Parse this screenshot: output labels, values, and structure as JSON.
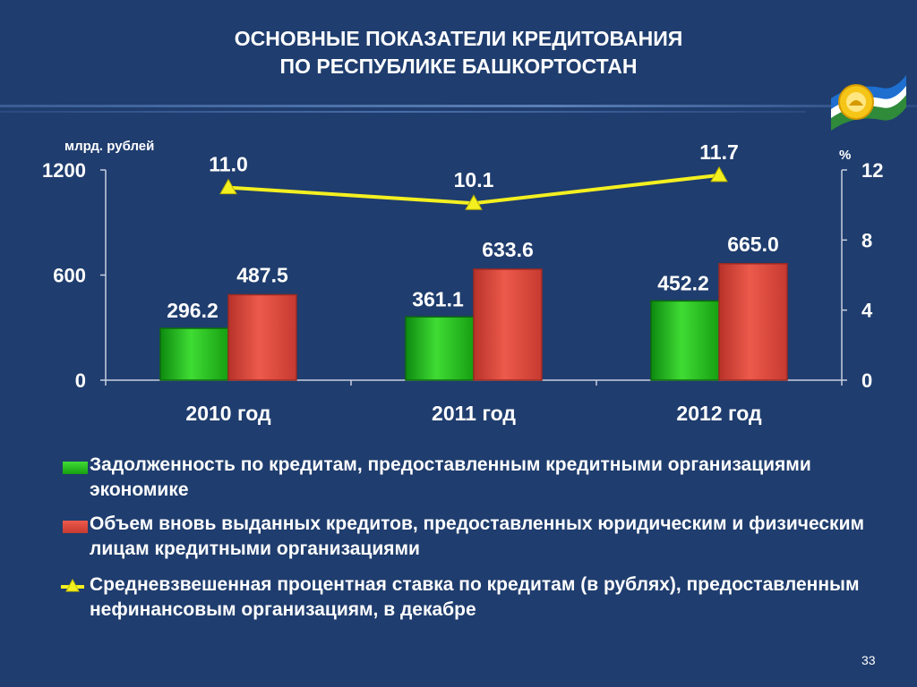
{
  "slide": {
    "title_line1": "ОСНОВНЫЕ ПОКАЗАТЕЛИ КРЕДИТОВАНИЯ",
    "title_line2": "ПО РЕСПУБЛИКЕ БАШКОРТОСТАН",
    "page_number": "33",
    "logo_icon": "bashkortostan-flag-emblem-icon"
  },
  "chart_data": {
    "type": "bar",
    "categories": [
      "2010 год",
      "2011 год",
      "2012 год"
    ],
    "y_left": {
      "unit_label": "млрд. рублей",
      "ticks": [
        0,
        600,
        1200
      ],
      "range": [
        0,
        1200
      ]
    },
    "y_right": {
      "unit_label": "%",
      "ticks": [
        0,
        4,
        8,
        12
      ],
      "range": [
        0,
        12
      ]
    },
    "series": [
      {
        "name": "Задолженность по кредитам, предоставленным кредитными организациями экономике",
        "kind": "bar",
        "axis": "left",
        "color": "#22b418",
        "values": [
          296.2,
          361.1,
          452.2
        ],
        "labels": [
          "296.2",
          "361.1",
          "452.2"
        ]
      },
      {
        "name": "Объем вновь выданных кредитов, предоставленных юридическим и физическим лицам кредитными организациями",
        "kind": "bar",
        "axis": "left",
        "color": "#d9473a",
        "values": [
          487.5,
          633.6,
          665.0
        ],
        "labels": [
          "487.5",
          "633.6",
          "665.0"
        ]
      },
      {
        "name": "Средневзвешенная процентная ставка по кредитам (в рублях), предоставленным нефинансовым организациям, в декабре",
        "kind": "line",
        "axis": "right",
        "color": "#f4f020",
        "values": [
          11.0,
          10.1,
          11.7
        ],
        "labels": [
          "11.0",
          "10.1",
          "11.7"
        ]
      }
    ],
    "legend_position": "bottom",
    "grid": false
  }
}
